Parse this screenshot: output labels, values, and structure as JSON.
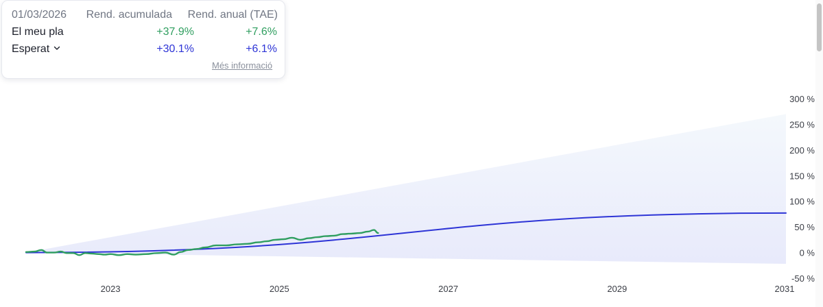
{
  "summary": {
    "date": "01/03/2026",
    "col_cumulative": "Rend. acumulada",
    "col_annual": "Rend. anual (TAE)",
    "rows": [
      {
        "label": "El meu pla",
        "cumulative": "+37.9%",
        "annual": "+7.6%"
      },
      {
        "label": "Esperat",
        "cumulative": "+30.1%",
        "annual": "+6.1%"
      }
    ],
    "more_info": "Més informació",
    "dropdown_icon": "chevron-down-icon"
  },
  "colors": {
    "green": "#2f9e5f",
    "blue": "#2d34d6",
    "band_top": "#f4f8fc",
    "band_bottom": "#e8eafb",
    "axis_text": "#3a3d45"
  },
  "chart_data": {
    "type": "line",
    "title": "",
    "xlabel": "",
    "ylabel": "",
    "x_ticks": [
      "2023",
      "2025",
      "2027",
      "2029",
      "2031"
    ],
    "y_ticks": [
      "300 %",
      "250 %",
      "200 %",
      "150 %",
      "100 %",
      "50 %",
      "0 %",
      "-50 %"
    ],
    "xlim": [
      2022.0,
      2031.0
    ],
    "ylim": [
      -50,
      300
    ],
    "grid": false,
    "legend": "none",
    "series": [
      {
        "name": "El meu pla",
        "color": "#2f9e5f",
        "x": [
          2022.0,
          2022.1,
          2022.18,
          2022.25,
          2022.33,
          2022.41,
          2022.48,
          2022.56,
          2022.63,
          2022.7,
          2022.78,
          2022.86,
          2022.93,
          2023.0,
          2023.1,
          2023.2,
          2023.3,
          2023.42,
          2023.55,
          2023.65,
          2023.75,
          2023.83,
          2023.92,
          2024.02,
          2024.12,
          2024.25,
          2024.37,
          2024.5,
          2024.62,
          2024.75,
          2024.85,
          2024.95,
          2025.05,
          2025.15,
          2025.25,
          2025.35,
          2025.45,
          2025.55,
          2025.65,
          2025.75,
          2025.85,
          2025.95,
          2026.05,
          2026.12,
          2026.17
        ],
        "y": [
          1,
          2,
          5,
          0,
          0,
          2,
          -1,
          -1,
          -5,
          -1,
          -2,
          -3,
          -4,
          -3,
          -5,
          -3,
          -4,
          -3,
          -1,
          0,
          -4,
          1,
          5,
          7,
          10,
          14,
          14,
          16,
          17,
          20,
          22,
          25,
          26,
          29,
          25,
          28,
          30,
          32,
          33,
          36,
          37,
          38,
          41,
          44,
          38
        ]
      },
      {
        "name": "Esperat",
        "color": "#2d34d6",
        "x": [
          2022.0,
          2031.0
        ],
        "y": [
          0,
          77
        ]
      }
    ],
    "band": {
      "x": [
        2022.0,
        2031.0
      ],
      "upper": [
        0,
        270
      ],
      "lower": [
        0,
        -22
      ]
    }
  }
}
